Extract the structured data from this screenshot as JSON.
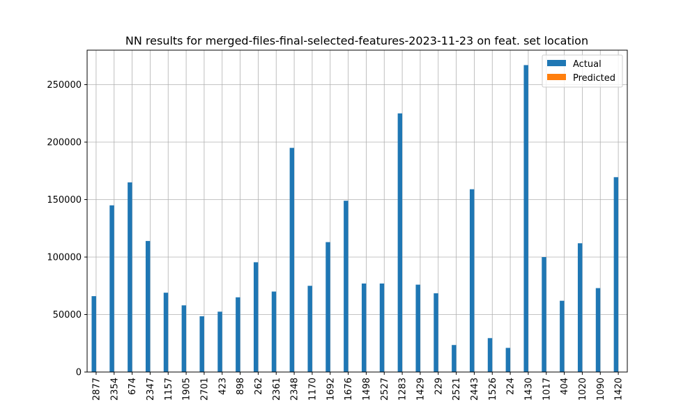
{
  "chart_data": {
    "type": "bar",
    "title": "NN results for merged-files-final-selected-features-2023-11-23 on feat. set location",
    "xlabel": "",
    "ylabel": "",
    "categories": [
      "2877",
      "2354",
      "674",
      "2347",
      "1157",
      "1905",
      "2701",
      "423",
      "898",
      "262",
      "2361",
      "2348",
      "1170",
      "1692",
      "1676",
      "1498",
      "2527",
      "1283",
      "1429",
      "229",
      "2521",
      "2443",
      "1526",
      "224",
      "1430",
      "1017",
      "404",
      "1020",
      "1090",
      "1420"
    ],
    "series": [
      {
        "name": "Actual",
        "color": "#1f77b4",
        "values": [
          66000,
          145000,
          165000,
          114000,
          69000,
          58000,
          48500,
          52500,
          65000,
          95500,
          70000,
          195000,
          75000,
          113000,
          149000,
          77000,
          77000,
          225000,
          76000,
          68500,
          23500,
          159000,
          29500,
          21000,
          267000,
          100000,
          62000,
          112000,
          73000,
          169500
        ]
      },
      {
        "name": "Predicted",
        "color": "#ff7f0e",
        "values": [
          0,
          0,
          0,
          0,
          0,
          0,
          0,
          0,
          0,
          0,
          0,
          0,
          0,
          0,
          0,
          0,
          0,
          0,
          0,
          0,
          0,
          0,
          0,
          0,
          0,
          0,
          0,
          0,
          0,
          0
        ]
      }
    ],
    "yticks": [
      0,
      50000,
      100000,
      150000,
      200000,
      250000
    ],
    "ytick_labels": [
      "0",
      "50000",
      "100000",
      "150000",
      "200000",
      "250000"
    ],
    "ylim": [
      0,
      280000
    ],
    "grid": true,
    "legend_position": "top-right"
  }
}
